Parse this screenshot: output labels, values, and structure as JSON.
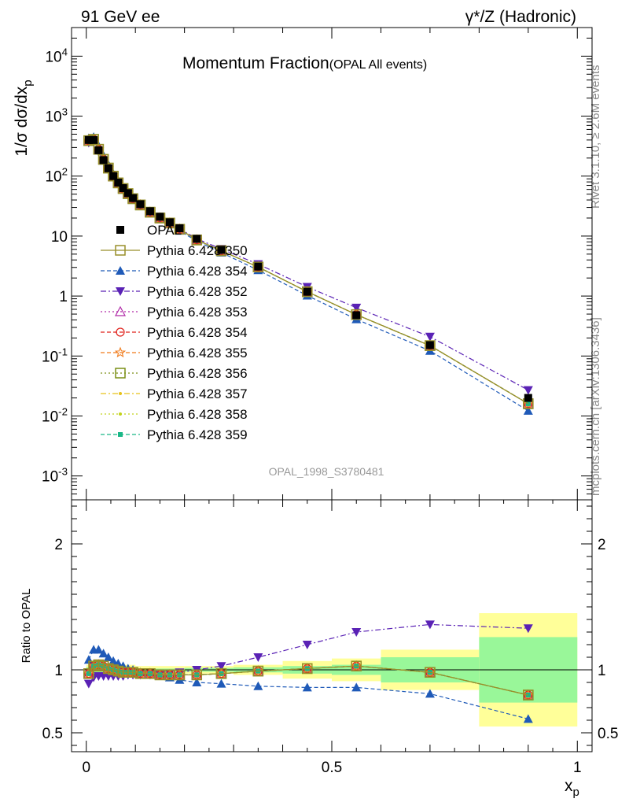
{
  "header": {
    "left": "91 GeV ee",
    "right": "γ*/Z (Hadronic)"
  },
  "side": {
    "rivet": "Rivet 3.1.10, ≥ 2.6M events",
    "mcplots": "mcplots.cern.ch [arXiv:1306.3436]"
  },
  "chart_data": [
    {
      "type": "scatter",
      "panel": "main",
      "title": "Momentum Fraction",
      "subtitle": "(OPAL All events)",
      "watermark": "OPAL_1998_S3780481",
      "ylabel": "1/σ dσ/dx_p",
      "ylabel_parts": {
        "main": "1/σ dσ/dx",
        "sub": "p"
      },
      "yscale": "log",
      "ylim": [
        0.0004,
        30000
      ],
      "xlim": [
        -0.03,
        1.03
      ],
      "y_tick_labels": [
        "10^-3",
        "10^-2",
        "10^-1",
        "1",
        "10",
        "10^2",
        "10^3",
        "10^4"
      ],
      "legend_position": "left-middle",
      "x": [
        0.005,
        0.015,
        0.025,
        0.035,
        0.045,
        0.055,
        0.065,
        0.075,
        0.085,
        0.095,
        0.11,
        0.13,
        0.15,
        0.17,
        0.19,
        0.225,
        0.275,
        0.35,
        0.45,
        0.55,
        0.7,
        0.9
      ],
      "series": [
        {
          "name": "OPAL",
          "color": "#000000",
          "marker": "square-filled",
          "style": "none",
          "values": [
            400,
            400,
            270,
            185,
            135,
            100,
            78,
            63,
            52,
            43,
            34,
            26,
            21,
            17,
            13.5,
            9.0,
            5.9,
            3.1,
            1.18,
            0.48,
            0.152,
            0.02
          ]
        },
        {
          "name": "Pythia 6.428 350",
          "color": "#998f2a",
          "marker": "square-open",
          "style": "solid",
          "values": [
            390,
            410,
            280,
            190,
            136,
            100,
            77,
            62,
            51,
            42,
            33,
            25,
            20,
            16.5,
            13.0,
            8.6,
            5.7,
            3.05,
            1.18,
            0.49,
            0.149,
            0.016
          ]
        },
        {
          "name": "Pythia 6.428 354",
          "color": "#1f5ab8",
          "marker": "triangle-up-filled",
          "style": "dashed",
          "tag": "blue",
          "values": [
            430,
            450,
            320,
            220,
            155,
            110,
            83,
            66,
            53,
            44,
            34,
            25,
            20,
            16,
            12.3,
            8.2,
            5.3,
            2.7,
            1.02,
            0.41,
            0.122,
            0.0122
          ]
        },
        {
          "name": "Pythia 6.428 352",
          "color": "#5a22b5",
          "marker": "triangle-down-filled",
          "style": "dashdot",
          "values": [
            360,
            380,
            255,
            178,
            130,
            97,
            75,
            61,
            51,
            42,
            33,
            25,
            20,
            16.5,
            13.3,
            9.0,
            6.1,
            3.4,
            1.42,
            0.64,
            0.21,
            0.027
          ]
        },
        {
          "name": "Pythia 6.428 353",
          "color": "#b02aa8",
          "marker": "triangle-up-open",
          "style": "dotted",
          "values": [
            390,
            410,
            280,
            190,
            136,
            100,
            77,
            62,
            51,
            42,
            33,
            25,
            20,
            16.5,
            13.0,
            8.6,
            5.7,
            3.05,
            1.18,
            0.49,
            0.149,
            0.016
          ]
        },
        {
          "name": "Pythia 6.428 354",
          "color": "#e0201a",
          "marker": "circle-open",
          "style": "dashed",
          "tag": "red",
          "values": [
            390,
            410,
            280,
            190,
            136,
            100,
            77,
            62,
            51,
            42,
            33,
            25,
            20,
            16.5,
            13.0,
            8.6,
            5.7,
            3.05,
            1.18,
            0.49,
            0.149,
            0.016
          ]
        },
        {
          "name": "Pythia 6.428 355",
          "color": "#f07a1a",
          "marker": "star-open",
          "style": "dashed",
          "values": [
            390,
            410,
            280,
            190,
            136,
            100,
            77,
            62,
            51,
            42,
            33,
            25,
            20,
            16.5,
            13.0,
            8.6,
            5.7,
            3.05,
            1.18,
            0.49,
            0.149,
            0.016
          ]
        },
        {
          "name": "Pythia 6.428 356",
          "color": "#7a8f16",
          "marker": "square-open",
          "style": "dotted",
          "values": [
            390,
            410,
            280,
            190,
            136,
            100,
            77,
            62,
            51,
            42,
            33,
            25,
            20,
            16.5,
            13.0,
            8.6,
            5.7,
            3.05,
            1.18,
            0.49,
            0.149,
            0.016
          ]
        },
        {
          "name": "Pythia 6.428 357",
          "color": "#e6c21a",
          "marker": "dot-small",
          "style": "dashdot",
          "values": [
            390,
            410,
            280,
            190,
            136,
            100,
            77,
            62,
            51,
            42,
            33,
            25,
            20,
            16.5,
            13.0,
            8.6,
            5.7,
            3.05,
            1.18,
            0.49,
            0.149,
            0.016
          ]
        },
        {
          "name": "Pythia 6.428 358",
          "color": "#c2d21a",
          "marker": "dot-small",
          "style": "dotted",
          "values": [
            390,
            410,
            280,
            190,
            136,
            100,
            77,
            62,
            51,
            42,
            33,
            25,
            20,
            16.5,
            13.0,
            8.6,
            5.7,
            3.05,
            1.18,
            0.49,
            0.149,
            0.016
          ]
        },
        {
          "name": "Pythia 6.428 359",
          "color": "#1ab887",
          "marker": "square-filled-small",
          "style": "dashed",
          "values": [
            390,
            410,
            280,
            190,
            136,
            100,
            77,
            62,
            51,
            42,
            33,
            25,
            20,
            16.5,
            13.0,
            8.6,
            5.7,
            3.05,
            1.18,
            0.49,
            0.149,
            0.016
          ]
        }
      ]
    },
    {
      "type": "scatter",
      "panel": "ratio",
      "ylabel": "Ratio to OPAL",
      "xlabel": "x_p",
      "xlabel_parts": {
        "main": "x",
        "sub": "p"
      },
      "xlim": [
        -0.03,
        1.03
      ],
      "ylim": [
        0.35,
        2.35
      ],
      "x_tick_labels": [
        "0",
        "0.5",
        "1"
      ],
      "y_tick_labels": [
        "0.5",
        "1",
        "2"
      ],
      "reference_line": 1,
      "bands": [
        {
          "x0": 0.0,
          "x1": 0.1,
          "stat": 0.02,
          "total": 0.04
        },
        {
          "x0": 0.1,
          "x1": 0.2,
          "stat": 0.01,
          "total": 0.03
        },
        {
          "x0": 0.2,
          "x1": 0.3,
          "stat": 0.015,
          "total": 0.03
        },
        {
          "x0": 0.3,
          "x1": 0.4,
          "stat": 0.02,
          "total": 0.04
        },
        {
          "x0": 0.4,
          "x1": 0.5,
          "stat": 0.03,
          "total": 0.07
        },
        {
          "x0": 0.5,
          "x1": 0.6,
          "stat": 0.04,
          "total": 0.09
        },
        {
          "x0": 0.6,
          "x1": 0.8,
          "stat": 0.1,
          "total": 0.16
        },
        {
          "x0": 0.8,
          "x1": 1.0,
          "stat": 0.26,
          "total": 0.45
        }
      ],
      "band_colors": {
        "stat": "#99f799",
        "total": "#ffff99"
      },
      "x": [
        0.005,
        0.015,
        0.025,
        0.035,
        0.045,
        0.055,
        0.065,
        0.075,
        0.085,
        0.095,
        0.11,
        0.13,
        0.15,
        0.17,
        0.19,
        0.225,
        0.275,
        0.35,
        0.45,
        0.55,
        0.7,
        0.9
      ],
      "series": [
        {
          "name": "Pythia 6.428 350",
          "color": "#998f2a",
          "marker": "square-open",
          "style": "solid",
          "values": [
            0.97,
            1.03,
            1.04,
            1.03,
            1.01,
            1.0,
            0.99,
            0.98,
            0.98,
            0.98,
            0.97,
            0.97,
            0.96,
            0.96,
            0.96,
            0.96,
            0.97,
            0.99,
            1.01,
            1.03,
            0.98,
            0.8
          ]
        },
        {
          "name": "Pythia 6.428 354",
          "color": "#1f5ab8",
          "marker": "triangle-up-filled",
          "style": "dashed",
          "tag": "blue",
          "values": [
            1.08,
            1.16,
            1.16,
            1.13,
            1.1,
            1.07,
            1.05,
            1.03,
            1.01,
            1.0,
            0.98,
            0.96,
            0.95,
            0.94,
            0.92,
            0.9,
            0.89,
            0.87,
            0.86,
            0.86,
            0.81,
            0.61
          ]
        },
        {
          "name": "Pythia 6.428 352",
          "color": "#5a22b5",
          "marker": "triangle-down-filled",
          "style": "dashdot",
          "values": [
            0.89,
            0.94,
            0.95,
            0.95,
            0.95,
            0.95,
            0.95,
            0.95,
            0.96,
            0.96,
            0.96,
            0.96,
            0.96,
            0.97,
            0.98,
            1.0,
            1.03,
            1.1,
            1.2,
            1.3,
            1.36,
            1.33
          ]
        },
        {
          "name": "Pythia 6.428 353",
          "color": "#b02aa8",
          "marker": "triangle-up-open",
          "style": "dotted",
          "values": [
            0.97,
            1.03,
            1.04,
            1.03,
            1.01,
            1.0,
            0.99,
            0.98,
            0.98,
            0.98,
            0.97,
            0.97,
            0.96,
            0.96,
            0.96,
            0.96,
            0.97,
            0.99,
            1.01,
            1.03,
            0.98,
            0.8
          ]
        },
        {
          "name": "Pythia 6.428 354",
          "color": "#e0201a",
          "marker": "circle-open",
          "style": "dashed",
          "tag": "red",
          "values": [
            0.97,
            1.03,
            1.04,
            1.03,
            1.01,
            1.0,
            0.99,
            0.98,
            0.98,
            0.98,
            0.97,
            0.97,
            0.96,
            0.96,
            0.96,
            0.96,
            0.97,
            0.99,
            1.01,
            1.03,
            0.98,
            0.8
          ]
        },
        {
          "name": "Pythia 6.428 355",
          "color": "#f07a1a",
          "marker": "star-open",
          "style": "dashed",
          "values": [
            0.97,
            1.03,
            1.04,
            1.03,
            1.01,
            1.0,
            0.99,
            0.98,
            0.98,
            0.98,
            0.97,
            0.97,
            0.96,
            0.96,
            0.96,
            0.96,
            0.97,
            0.99,
            1.01,
            1.03,
            0.98,
            0.8
          ]
        },
        {
          "name": "Pythia 6.428 356",
          "color": "#7a8f16",
          "marker": "square-open",
          "style": "dotted",
          "values": [
            0.97,
            1.03,
            1.04,
            1.03,
            1.01,
            1.0,
            0.99,
            0.98,
            0.98,
            0.98,
            0.97,
            0.97,
            0.96,
            0.96,
            0.96,
            0.96,
            0.97,
            0.99,
            1.01,
            1.03,
            0.98,
            0.8
          ]
        },
        {
          "name": "Pythia 6.428 357",
          "color": "#e6c21a",
          "marker": "dot-small",
          "style": "dashdot",
          "values": [
            0.97,
            1.03,
            1.04,
            1.03,
            1.01,
            1.0,
            0.99,
            0.98,
            0.98,
            0.98,
            0.97,
            0.97,
            0.96,
            0.96,
            0.96,
            0.96,
            0.97,
            0.99,
            1.01,
            1.03,
            0.98,
            0.8
          ]
        },
        {
          "name": "Pythia 6.428 358",
          "color": "#c2d21a",
          "marker": "dot-small",
          "style": "dotted",
          "values": [
            0.97,
            1.03,
            1.04,
            1.03,
            1.01,
            1.0,
            0.99,
            0.98,
            0.98,
            0.98,
            0.97,
            0.97,
            0.96,
            0.96,
            0.96,
            0.96,
            0.97,
            0.99,
            1.01,
            1.03,
            0.98,
            0.8
          ]
        },
        {
          "name": "Pythia 6.428 359",
          "color": "#1ab887",
          "marker": "square-filled-small",
          "style": "dashed",
          "values": [
            0.97,
            1.03,
            1.04,
            1.03,
            1.01,
            1.0,
            0.99,
            0.98,
            0.98,
            0.98,
            0.97,
            0.97,
            0.96,
            0.96,
            0.96,
            0.96,
            0.97,
            0.99,
            1.01,
            1.03,
            0.98,
            0.8
          ]
        }
      ]
    }
  ]
}
